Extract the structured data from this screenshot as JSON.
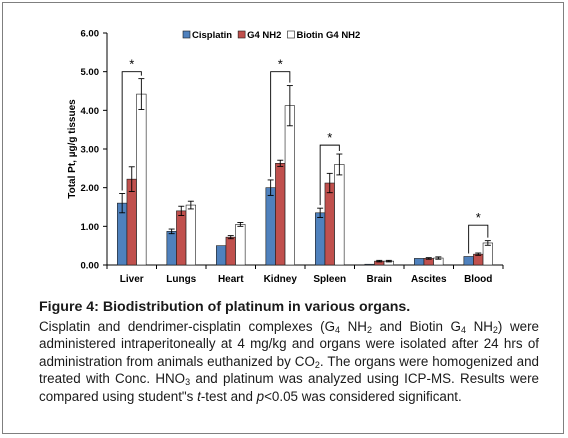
{
  "chart_data": {
    "type": "bar",
    "categories": [
      "Liver",
      "Lungs",
      "Heart",
      "Kidney",
      "Spleen",
      "Brain",
      "Ascites",
      "Blood"
    ],
    "series": [
      {
        "name": "Cisplatin",
        "color": "#4f81bd",
        "values": [
          1.6,
          0.87,
          0.5,
          2.0,
          1.35,
          0.02,
          0.17,
          0.22
        ],
        "errors": [
          0.25,
          0.06,
          0.0,
          0.2,
          0.12,
          0.0,
          0.0,
          0.0
        ]
      },
      {
        "name": "G4 NH2",
        "color": "#c0504d",
        "values": [
          2.22,
          1.4,
          0.72,
          2.63,
          2.12,
          0.1,
          0.17,
          0.28
        ],
        "errors": [
          0.32,
          0.12,
          0.04,
          0.08,
          0.25,
          0.02,
          0.02,
          0.03
        ]
      },
      {
        "name": "Biotin G4 NH2",
        "color": "#ffffff",
        "values": [
          4.42,
          1.55,
          1.05,
          4.12,
          2.6,
          0.1,
          0.18,
          0.57
        ],
        "errors": [
          0.4,
          0.1,
          0.05,
          0.52,
          0.27,
          0.02,
          0.03,
          0.06
        ]
      }
    ],
    "ylabel": "Total Pt, µg/g tissues",
    "ylim": [
      0,
      6
    ],
    "yticks": [
      "0.00",
      "1.00",
      "2.00",
      "3.00",
      "4.00",
      "5.00",
      "6.00"
    ],
    "legend_position": "top",
    "significance": [
      {
        "category": "Liver",
        "label": "*",
        "level": 5.0
      },
      {
        "category": "Kidney",
        "label": "*",
        "level": 5.0
      },
      {
        "category": "Spleen",
        "label": "*",
        "level": 3.1
      },
      {
        "category": "Blood",
        "label": "*",
        "level": 1.03
      }
    ]
  },
  "caption": {
    "title": "Figure 4: Biodistribution of platinum in various organs.",
    "p1": "Cisplatin and dendrimer-cisplatin complexes (G",
    "sub1": "4",
    "p2": " NH",
    "sub2": "2",
    "p3": " and Biotin G",
    "sub3": "4",
    "p4": " NH",
    "sub4": "2",
    "p5": ") were administered intraperitoneally at 4 mg/kg and organs were isolated after 24 hrs of administration from animals euthanized by CO",
    "sub5": "2",
    "p6": ". The organs were homogenized and treated with Conc. HNO",
    "sub6": "3",
    "p7": " and platinum was analyzed using ICP-MS. Results were compared using student\"s ",
    "ttest": "t",
    "p8": "-test and ",
    "pval": "p",
    "p9": "<0.05 was considered significant."
  }
}
